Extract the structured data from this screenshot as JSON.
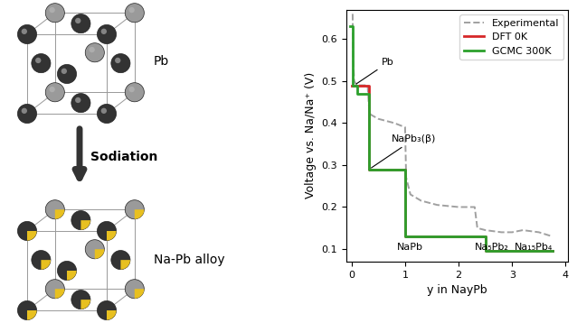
{
  "chart_data": {
    "type": "line",
    "x_label": "y in NayPb",
    "y_label": "Voltage vs. Na/Na⁺ (V)",
    "xlim": [
      -0.1,
      4.05
    ],
    "xticks": [
      0,
      1,
      2,
      3,
      4
    ],
    "ylim": [
      0.07,
      0.67
    ],
    "yticks": [
      0.1,
      0.2,
      0.3,
      0.4,
      0.5,
      0.6
    ],
    "legend": "upper right",
    "grid": false,
    "series": [
      {
        "name": "Experimental",
        "color": "#a0a0a0",
        "line_style": "dashed",
        "x": [
          0.02,
          0.03,
          0.05,
          0.1,
          0.2,
          0.3,
          0.33,
          0.36,
          0.5,
          0.8,
          1.0,
          1.02,
          1.1,
          1.3,
          1.6,
          2.0,
          2.3,
          2.35,
          2.5,
          2.8,
          3.0,
          3.2,
          3.5,
          3.75
        ],
        "values": [
          0.66,
          0.55,
          0.5,
          0.49,
          0.49,
          0.49,
          0.43,
          0.42,
          0.41,
          0.4,
          0.39,
          0.27,
          0.23,
          0.215,
          0.205,
          0.2,
          0.2,
          0.15,
          0.145,
          0.14,
          0.14,
          0.145,
          0.14,
          0.13
        ]
      },
      {
        "name": "DFT 0K",
        "color": "#d62728",
        "line_style": "solid",
        "x": [
          0,
          0.33,
          0.33,
          1.0,
          1.0,
          2.5,
          2.5,
          3.75
        ],
        "values": [
          0.49,
          0.49,
          0.29,
          0.29,
          0.13,
          0.13,
          0.095,
          0.095
        ]
      },
      {
        "name": "GCMC 300K",
        "color": "#2ca02c",
        "line_style": "solid",
        "x": [
          -0.03,
          0.02,
          0.02,
          0.1,
          0.1,
          0.33,
          0.33,
          1.0,
          1.0,
          2.5,
          2.5,
          3.75
        ],
        "values": [
          0.63,
          0.63,
          0.49,
          0.49,
          0.47,
          0.47,
          0.29,
          0.29,
          0.13,
          0.13,
          0.095,
          0.095
        ]
      }
    ],
    "annotations": [
      {
        "text": "Pb",
        "x": 0.05,
        "y": 0.49
      },
      {
        "text": "NaPb₃(β)",
        "x": 0.33,
        "y": 0.29
      },
      {
        "text": "NaPb",
        "x": 0.85,
        "y": 0.105
      },
      {
        "text": "Na₅Pb₂",
        "x": 2.3,
        "y": 0.105
      },
      {
        "text": "Na₁₅Pb₄",
        "x": 3.05,
        "y": 0.105
      }
    ]
  },
  "diagram": {
    "top_label": "Pb",
    "arrow_label": "Sodiation",
    "bottom_label": "Na-Pb alloy"
  }
}
